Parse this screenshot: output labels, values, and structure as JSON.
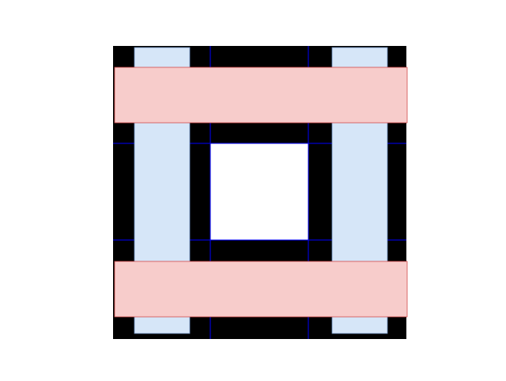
{
  "colors": {
    "background": "#ffffff",
    "board": "#000000",
    "grid_line": "#0000ff",
    "center_square": "#ffffff",
    "vertical_strip": "#d6e6f8",
    "vertical_strip_edge": "#6f8fc0",
    "horizontal_strip": "#f7cccb",
    "horizontal_strip_edge": "#d04a4a"
  }
}
